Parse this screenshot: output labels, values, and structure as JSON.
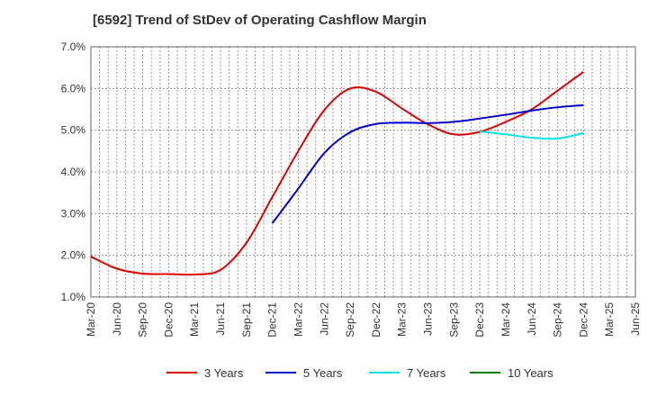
{
  "chart_data": {
    "type": "line",
    "title": "[6592]  Trend of StDev of Operating Cashflow Margin",
    "xlabel": "",
    "ylabel": "",
    "x_ticks": [
      "Mar-20",
      "Jun-20",
      "Sep-20",
      "Dec-20",
      "Mar-21",
      "Jun-21",
      "Sep-21",
      "Dec-21",
      "Mar-22",
      "Jun-22",
      "Sep-22",
      "Dec-22",
      "Mar-23",
      "Jun-23",
      "Sep-23",
      "Dec-23",
      "Mar-24",
      "Jun-24",
      "Sep-24",
      "Dec-24",
      "Mar-25",
      "Jun-25"
    ],
    "y_ticks": [
      "1.0%",
      "2.0%",
      "3.0%",
      "4.0%",
      "5.0%",
      "6.0%",
      "7.0%"
    ],
    "ylim": [
      1.0,
      7.0
    ],
    "y_unit": "%",
    "grid": true,
    "legend_position": "bottom",
    "series": [
      {
        "name": "3 Years",
        "color": "#dd0000",
        "points": [
          [
            "Mar-20",
            1.97
          ],
          [
            "Jun-20",
            1.68
          ],
          [
            "Sep-20",
            1.56
          ],
          [
            "Dec-20",
            1.55
          ],
          [
            "Mar-21",
            1.54
          ],
          [
            "Jun-21",
            1.65
          ],
          [
            "Sep-21",
            2.3
          ],
          [
            "Dec-21",
            3.4
          ],
          [
            "Mar-22",
            4.5
          ],
          [
            "Jun-22",
            5.48
          ],
          [
            "Sep-22",
            6.0
          ],
          [
            "Dec-22",
            5.92
          ],
          [
            "Mar-23",
            5.52
          ],
          [
            "Jun-23",
            5.14
          ],
          [
            "Sep-23",
            4.9
          ],
          [
            "Dec-23",
            4.96
          ],
          [
            "Mar-24",
            5.2
          ],
          [
            "Jun-24",
            5.5
          ],
          [
            "Sep-24",
            5.95
          ],
          [
            "Dec-24",
            6.4
          ]
        ]
      },
      {
        "name": "5 Years",
        "color": "#0000cc",
        "points": [
          [
            "Dec-21",
            2.77
          ],
          [
            "Mar-22",
            3.6
          ],
          [
            "Jun-22",
            4.45
          ],
          [
            "Sep-22",
            4.95
          ],
          [
            "Dec-22",
            5.15
          ],
          [
            "Mar-23",
            5.18
          ],
          [
            "Jun-23",
            5.17
          ],
          [
            "Sep-23",
            5.2
          ],
          [
            "Dec-23",
            5.28
          ],
          [
            "Mar-24",
            5.37
          ],
          [
            "Jun-24",
            5.47
          ],
          [
            "Sep-24",
            5.55
          ],
          [
            "Dec-24",
            5.6
          ]
        ]
      },
      {
        "name": "7 Years",
        "color": "#00e5e5",
        "points": [
          [
            "Dec-23",
            4.97
          ],
          [
            "Mar-24",
            4.9
          ],
          [
            "Jun-24",
            4.82
          ],
          [
            "Sep-24",
            4.8
          ],
          [
            "Dec-24",
            4.93
          ]
        ]
      },
      {
        "name": "10 Years",
        "color": "#008000",
        "points": []
      }
    ]
  }
}
